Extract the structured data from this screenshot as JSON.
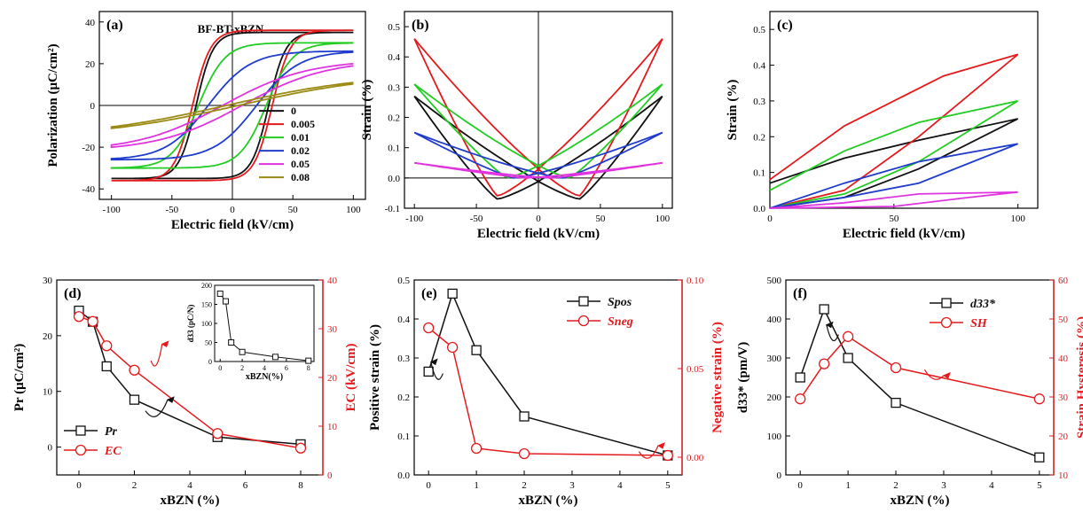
{
  "figure": {
    "colors": {
      "black": "#111111",
      "red": "#e41a1c",
      "green": "#22cc22",
      "blue": "#1f3ccc",
      "magenta": "#e033e0",
      "olive": "#9b8a14"
    }
  },
  "chart_data": [
    {
      "id": "a",
      "type": "line",
      "panel_label": "(a)",
      "annotation": "BF-BT-xBZN",
      "xlabel": "Electric field (kV/cm)",
      "ylabel": "Polarization (μC/cm²)",
      "xlim": [
        -110,
        110
      ],
      "ylim": [
        -45,
        45
      ],
      "xticks": [
        -100,
        -50,
        0,
        50,
        100
      ],
      "xtick_labels": [
        "-100",
        "-50",
        "0",
        "50",
        "100"
      ],
      "yticks": [
        -40,
        -20,
        0,
        20,
        40
      ],
      "ytick_labels": [
        "-40",
        "-20",
        "0",
        "20",
        "40"
      ],
      "legend": {
        "position": "bottom-right",
        "entries": [
          "0",
          "0.005",
          "0.01",
          "0.02",
          "0.05",
          "0.08"
        ]
      },
      "series": [
        {
          "name": "0",
          "color": "#111111",
          "Ps": 35,
          "Pr": 24,
          "Ec": 30,
          "w": 14
        },
        {
          "name": "0.005",
          "color": "#e41a1c",
          "Ps": 36,
          "Pr": 23,
          "Ec": 33,
          "w": 15
        },
        {
          "name": "0.01",
          "color": "#22cc22",
          "Ps": 30,
          "Pr": 15,
          "Ec": 28,
          "w": 22
        },
        {
          "name": "0.02",
          "color": "#1f3ccc",
          "Ps": 26,
          "Pr": 8,
          "Ec": 20,
          "w": 35
        },
        {
          "name": "0.05",
          "color": "#e033e0",
          "Ps": 20,
          "Pr": 3,
          "Ec": 8,
          "w": 70
        },
        {
          "name": "0.08",
          "color": "#9b8a14",
          "Ps": 11,
          "Pr": 1,
          "Ec": 5,
          "w": 120
        }
      ]
    },
    {
      "id": "b",
      "type": "line",
      "panel_label": "(b)",
      "xlabel": "Electric field (kV/cm)",
      "ylabel": "Strain (%)",
      "xlim": [
        -108,
        108
      ],
      "ylim": [
        -0.1,
        0.55
      ],
      "xticks": [
        -100,
        -50,
        0,
        50,
        100
      ],
      "xtick_labels": [
        "-100",
        "-50",
        "0",
        "50",
        "100"
      ],
      "yticks": [
        -0.1,
        0,
        0.1,
        0.2,
        0.3,
        0.4,
        0.5
      ],
      "ytick_labels": [
        "-0.1",
        "0.0",
        "0.1",
        "0.2",
        "0.3",
        "0.4",
        "0.5"
      ],
      "series": [
        {
          "name": "0",
          "color": "#111111",
          "smax": 0.27,
          "smin": -0.07,
          "e0": 33,
          "smid": 0.04
        },
        {
          "name": "0.005",
          "color": "#e41a1c",
          "smax": 0.46,
          "smin": -0.06,
          "e0": 33,
          "smid": 0.12
        },
        {
          "name": "0.01",
          "color": "#22cc22",
          "smax": 0.31,
          "smin": 0.0,
          "e0": 25,
          "smid": 0.06
        },
        {
          "name": "0.02",
          "color": "#1f3ccc",
          "smax": 0.15,
          "smin": 0.0,
          "e0": 20,
          "smid": 0.03
        },
        {
          "name": "0.05",
          "color": "#e033e0",
          "smax": 0.05,
          "smin": 0.0,
          "e0": 10,
          "smid": 0.01
        }
      ]
    },
    {
      "id": "c",
      "type": "line",
      "panel_label": "(c)",
      "xlabel": "Electric field (kV/cm)",
      "ylabel": "Strain (%)",
      "xlim": [
        0,
        108
      ],
      "ylim": [
        0,
        0.55
      ],
      "xticks": [
        0,
        50,
        100
      ],
      "xtick_labels": [
        "0",
        "50",
        "100"
      ],
      "yticks": [
        0,
        0.1,
        0.2,
        0.3,
        0.4,
        0.5
      ],
      "ytick_labels": [
        "0.0",
        "0.1",
        "0.2",
        "0.3",
        "0.4",
        "0.5"
      ],
      "series": [
        {
          "name": "0",
          "color": "#111111",
          "up": [
            [
              0,
              0.0
            ],
            [
              30,
              0.03
            ],
            [
              60,
              0.11
            ],
            [
              100,
              0.25
            ]
          ],
          "down": [
            [
              100,
              0.25
            ],
            [
              60,
              0.19
            ],
            [
              30,
              0.14
            ],
            [
              0,
              0.07
            ]
          ]
        },
        {
          "name": "0.005",
          "color": "#e41a1c",
          "up": [
            [
              0,
              0.0
            ],
            [
              30,
              0.05
            ],
            [
              60,
              0.2
            ],
            [
              100,
              0.43
            ]
          ],
          "down": [
            [
              100,
              0.43
            ],
            [
              70,
              0.37
            ],
            [
              30,
              0.23
            ],
            [
              0,
              0.08
            ]
          ]
        },
        {
          "name": "0.01",
          "color": "#22cc22",
          "up": [
            [
              0,
              0.0
            ],
            [
              30,
              0.04
            ],
            [
              60,
              0.13
            ],
            [
              100,
              0.3
            ]
          ],
          "down": [
            [
              100,
              0.3
            ],
            [
              60,
              0.24
            ],
            [
              30,
              0.16
            ],
            [
              0,
              0.05
            ]
          ]
        },
        {
          "name": "0.02",
          "color": "#1f3ccc",
          "up": [
            [
              0,
              0.0
            ],
            [
              30,
              0.03
            ],
            [
              60,
              0.07
            ],
            [
              100,
              0.18
            ]
          ],
          "down": [
            [
              100,
              0.18
            ],
            [
              60,
              0.13
            ],
            [
              30,
              0.07
            ],
            [
              0,
              0.0
            ]
          ]
        },
        {
          "name": "0.05",
          "color": "#e033e0",
          "up": [
            [
              0,
              0.0
            ],
            [
              50,
              0.005
            ],
            [
              80,
              0.03
            ],
            [
              100,
              0.045
            ]
          ],
          "down": [
            [
              100,
              0.045
            ],
            [
              60,
              0.04
            ],
            [
              30,
              0.015
            ],
            [
              0,
              0.0
            ]
          ]
        }
      ]
    },
    {
      "id": "d",
      "type": "line",
      "panel_label": "(d)",
      "xlabel": "xBZN (%)",
      "ylabel": "Pr (μC/cm²)",
      "ylabel_right": "EC (kV/cm)",
      "xlim": [
        -0.8,
        8.8
      ],
      "ylim": [
        -5,
        30
      ],
      "ylim_right": [
        0,
        40
      ],
      "xticks": [
        0,
        2,
        4,
        6,
        8
      ],
      "xtick_labels": [
        "0",
        "2",
        "4",
        "6",
        "8"
      ],
      "yticks": [
        0,
        10,
        20,
        30
      ],
      "ytick_labels": [
        "0",
        "10",
        "20",
        "30"
      ],
      "yticks_right": [
        0,
        10,
        20,
        30,
        40
      ],
      "ytick_labels_right": [
        "0",
        "10",
        "20",
        "30",
        "40"
      ],
      "legend": {
        "position": "bottom-left",
        "entries": [
          "Pr",
          "EC"
        ]
      },
      "series": [
        {
          "name": "Pr",
          "color": "#111111",
          "marker": "square",
          "axis": "left",
          "x": [
            0,
            0.5,
            1,
            2,
            5,
            8
          ],
          "y": [
            24.5,
            22.5,
            14.5,
            8.5,
            1.8,
            0.5
          ]
        },
        {
          "name": "EC",
          "color": "#e41a1c",
          "marker": "circle",
          "axis": "right",
          "x": [
            0,
            0.5,
            1,
            2,
            5,
            8
          ],
          "y": [
            32.5,
            31.5,
            26.5,
            21.5,
            8.5,
            5.5
          ]
        }
      ],
      "inset": {
        "ylabel": "d33 (pC/N)",
        "xlabel": "xBZN(%)",
        "xlim": [
          -0.5,
          8.5
        ],
        "ylim": [
          0,
          200
        ],
        "xticks": [
          0,
          2,
          4,
          6,
          8
        ],
        "xtick_labels": [
          "0",
          "2",
          "4",
          "6",
          "8"
        ],
        "yticks": [
          0,
          50,
          100,
          150,
          200
        ],
        "ytick_labels": [
          "0",
          "50",
          "100",
          "150",
          "200"
        ],
        "series": [
          {
            "color": "#111111",
            "marker": "square",
            "x": [
              0,
              0.5,
              1,
              2,
              5,
              8
            ],
            "y": [
              178,
              158,
              50,
              25,
              12,
              2
            ]
          }
        ]
      }
    },
    {
      "id": "e",
      "type": "line",
      "panel_label": "(e)",
      "xlabel": "xBZN (%)",
      "ylabel": "Positive strain (%)",
      "ylabel_right": "Negative strain (%)",
      "xlim": [
        -0.3,
        5.3
      ],
      "ylim": [
        0,
        0.5
      ],
      "ylim_right": [
        -0.01,
        0.1
      ],
      "xticks": [
        0,
        1,
        2,
        3,
        4,
        5
      ],
      "xtick_labels": [
        "0",
        "1",
        "2",
        "3",
        "4",
        "5"
      ],
      "yticks": [
        0,
        0.1,
        0.2,
        0.3,
        0.4,
        0.5
      ],
      "ytick_labels": [
        "0.0",
        "0.1",
        "0.2",
        "0.3",
        "0.4",
        "0.5"
      ],
      "yticks_right": [
        0,
        0.05,
        0.1
      ],
      "ytick_labels_right": [
        "0.00",
        "0.05",
        "0.10"
      ],
      "legend": {
        "position": "top-right",
        "entries": [
          "Spos",
          "Sneg"
        ]
      },
      "series": [
        {
          "name": "Spos",
          "color": "#111111",
          "marker": "square",
          "axis": "left",
          "x": [
            0,
            0.5,
            1,
            2,
            5
          ],
          "y": [
            0.265,
            0.465,
            0.32,
            0.15,
            0.05
          ]
        },
        {
          "name": "Sneg",
          "color": "#e41a1c",
          "marker": "circle",
          "axis": "right",
          "x": [
            0,
            0.5,
            1,
            2,
            5
          ],
          "y": [
            0.073,
            0.062,
            0.005,
            0.002,
            0.001
          ]
        }
      ]
    },
    {
      "id": "f",
      "type": "line",
      "panel_label": "(f)",
      "xlabel": "xBZN (%)",
      "ylabel": "d33* (pm/V)",
      "ylabel_right": "Strain Hysteresis (%)",
      "xlim": [
        -0.3,
        5.3
      ],
      "ylim": [
        0,
        500
      ],
      "ylim_right": [
        10,
        60
      ],
      "xticks": [
        0,
        1,
        2,
        3,
        4,
        5
      ],
      "xtick_labels": [
        "0",
        "1",
        "2",
        "3",
        "4",
        "5"
      ],
      "yticks": [
        0,
        100,
        200,
        300,
        400,
        500
      ],
      "ytick_labels": [
        "0",
        "100",
        "200",
        "300",
        "400",
        "500"
      ],
      "yticks_right": [
        10,
        20,
        30,
        40,
        50,
        60
      ],
      "ytick_labels_right": [
        "10",
        "20",
        "30",
        "40",
        "50",
        "60"
      ],
      "legend": {
        "position": "top-right",
        "entries": [
          "d33*",
          "SH"
        ]
      },
      "series": [
        {
          "name": "d33*",
          "color": "#111111",
          "marker": "square",
          "axis": "left",
          "x": [
            0,
            0.5,
            1,
            2,
            5
          ],
          "y": [
            250,
            425,
            300,
            185,
            45
          ]
        },
        {
          "name": "SH",
          "color": "#e41a1c",
          "marker": "circle",
          "axis": "right",
          "x": [
            0,
            0.5,
            1,
            2,
            5
          ],
          "y": [
            29.5,
            38.5,
            45.5,
            37.5,
            29.5
          ]
        }
      ]
    }
  ]
}
